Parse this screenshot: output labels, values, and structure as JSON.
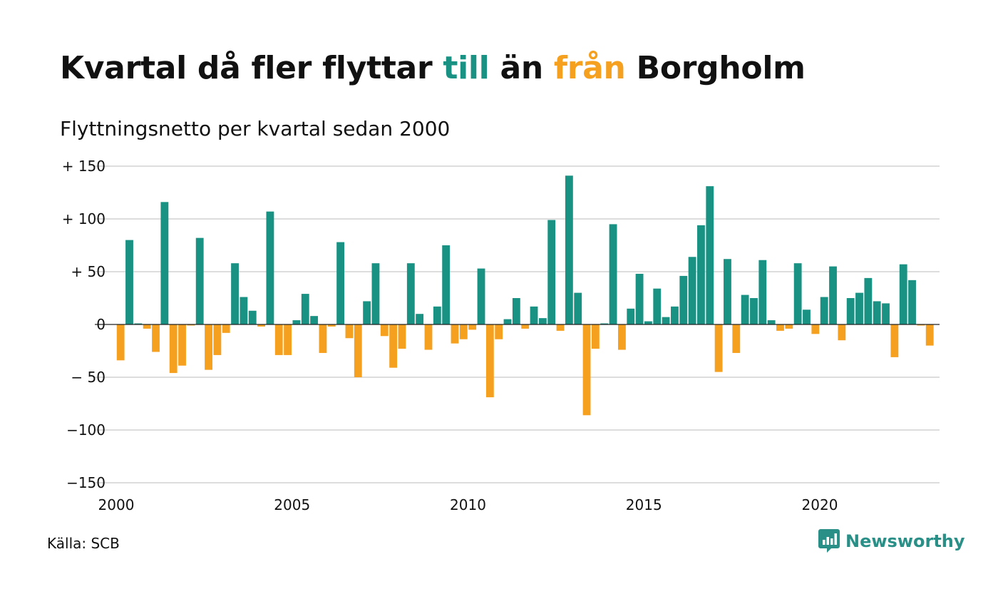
{
  "title": {
    "part1": "Kvartal då fler flyttar ",
    "in_word": "till",
    "part2": " än ",
    "out_word": "från",
    "part3": " Borgholm"
  },
  "subtitle": "Flyttningsnetto per kvartal sedan 2000",
  "source": "Källa: SCB",
  "logo": {
    "name": "Newsworthy",
    "icon": "newsworthy-chat-chart-icon"
  },
  "colors": {
    "positive": "#1a9283",
    "negative": "#f5a01f",
    "grid": "#dddddd",
    "zero_line": "#222222",
    "logo": "#2a8f87"
  },
  "chart_data": {
    "type": "bar",
    "ylim": [
      -150,
      150
    ],
    "yticks": [
      150,
      100,
      50,
      0,
      -50,
      -100,
      -150
    ],
    "ytick_labels": [
      "+ 150",
      "+ 100",
      "+  50",
      "0",
      "− 50",
      "−100",
      "−150"
    ],
    "xticks": [
      2000,
      2005,
      2010,
      2015,
      2020
    ],
    "xtick_labels": [
      "2000",
      "2005",
      "2010",
      "2015",
      "2020"
    ],
    "grid": true,
    "start_year": 2000,
    "values": [
      -34,
      80,
      1,
      -4,
      -26,
      116,
      -46,
      -39,
      -1,
      82,
      -43,
      -29,
      -8,
      58,
      26,
      13,
      -2,
      107,
      -29,
      -29,
      4,
      29,
      8,
      -27,
      -2,
      78,
      -13,
      -50,
      22,
      58,
      -11,
      -41,
      -23,
      58,
      10,
      -24,
      17,
      75,
      -18,
      -14,
      -5,
      53,
      -69,
      -14,
      5,
      25,
      -4,
      17,
      6,
      99,
      -6,
      141,
      30,
      -86,
      -23,
      1,
      95,
      -24,
      15,
      48,
      3,
      34,
      7,
      17,
      46,
      64,
      94,
      131,
      -45,
      62,
      -27,
      28,
      25,
      61,
      4,
      -6,
      -4,
      58,
      14,
      -9,
      26,
      55,
      -15,
      25,
      30,
      44,
      22,
      20,
      -31,
      57,
      42,
      -1,
      -20
    ]
  }
}
